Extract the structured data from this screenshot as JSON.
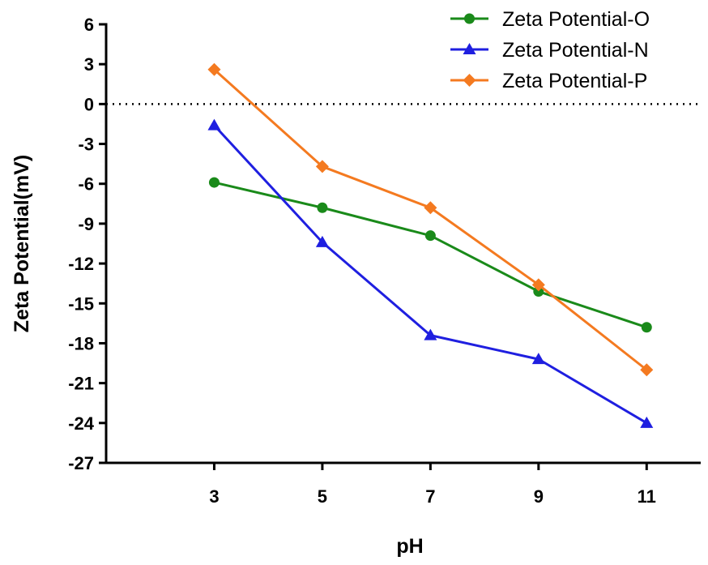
{
  "chart_data": {
    "type": "line",
    "title": "",
    "xlabel": "pH",
    "ylabel": "Zeta Potential(mV)",
    "x": [
      3,
      5,
      7,
      9,
      11
    ],
    "xticks": [
      "3",
      "5",
      "7",
      "9",
      "11"
    ],
    "xlim": [
      1,
      12
    ],
    "ylim": [
      -27,
      6
    ],
    "yticks": [
      6,
      3,
      0,
      -3,
      -6,
      -9,
      -12,
      -15,
      -18,
      -21,
      -24,
      -27
    ],
    "reference_line": {
      "y": 0,
      "style": "dotted"
    },
    "grid": false,
    "legend_position": "top-right",
    "series": [
      {
        "name": "Zeta Potential-O",
        "color": "#1a8a1a",
        "marker": "circle",
        "values": [
          -5.9,
          -7.8,
          -9.9,
          -14.1,
          -16.8
        ]
      },
      {
        "name": "Zeta Potential-N",
        "color": "#1f1fe0",
        "marker": "triangle",
        "values": [
          -1.6,
          -10.4,
          -17.4,
          -19.2,
          -24.0
        ]
      },
      {
        "name": "Zeta Potential-P",
        "color": "#f47a20",
        "marker": "diamond",
        "values": [
          2.6,
          -4.7,
          -7.8,
          -13.6,
          -20.0
        ]
      }
    ]
  }
}
